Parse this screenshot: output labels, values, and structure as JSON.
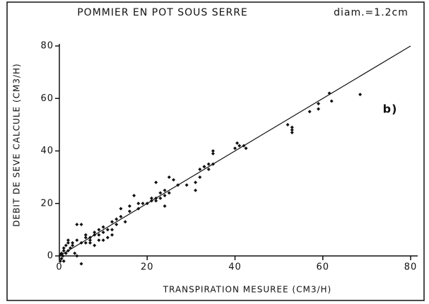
{
  "chart_data": {
    "type": "scatter",
    "title": "POMMIER EN POT SOUS SERRE",
    "subtitle": "diam.=1.2cm",
    "xlabel": "TRANSPIRATION MESUREE   (CM3/H)",
    "ylabel": "DEBIT DE SEVE CALCULE   (CM3/H)",
    "annotation": "b)",
    "color": "#111111",
    "x": [
      61.5,
      68.5,
      62,
      59,
      59,
      57,
      52,
      53,
      53,
      53,
      40.5,
      41,
      42,
      42.5,
      40,
      35,
      35,
      34,
      35,
      33,
      32,
      32,
      31,
      31,
      27,
      26,
      25,
      24,
      23,
      24,
      23,
      22,
      22,
      21,
      20,
      19,
      24,
      18,
      17,
      16,
      16,
      14,
      13,
      13,
      12,
      12,
      11,
      10,
      10,
      9,
      9,
      8,
      8,
      7,
      7,
      6,
      6,
      9,
      10,
      8,
      5,
      5,
      4,
      4,
      3,
      2,
      2,
      1.5,
      1,
      1,
      0.5,
      0.5,
      0.3,
      0.8,
      1,
      1.5,
      2,
      2.5,
      3,
      0.2,
      5,
      3.5,
      4,
      6,
      7,
      11,
      12,
      14,
      15,
      18,
      21,
      29,
      33,
      34,
      22,
      25
    ],
    "y": [
      62,
      61.5,
      59,
      58,
      56,
      55,
      50,
      49,
      48,
      47,
      43,
      42,
      42,
      41,
      41,
      40,
      39,
      35,
      35,
      34,
      33,
      30,
      25,
      28,
      27,
      29,
      24,
      25,
      24,
      23,
      22,
      22,
      21,
      21,
      20,
      20,
      19,
      18,
      23,
      19,
      17,
      18,
      14,
      12,
      13,
      10,
      10,
      9,
      11,
      10,
      8,
      8,
      9,
      7,
      6,
      7,
      8,
      6,
      6,
      4,
      5,
      12,
      12,
      6,
      5,
      6,
      5,
      4,
      3,
      2,
      1,
      -1,
      0.5,
      0,
      -2,
      1,
      2,
      3,
      4,
      -2,
      -3,
      1,
      0,
      5,
      5,
      7,
      8,
      15,
      13,
      20,
      22,
      27,
      34,
      33,
      28,
      30
    ],
    "line": {
      "x": [
        0,
        80
      ],
      "y": [
        0,
        80
      ]
    },
    "xlim": [
      0,
      80
    ],
    "ylim": [
      0,
      80
    ],
    "xticks": [
      0,
      20,
      40,
      60,
      80
    ],
    "yticks": [
      0,
      20,
      40,
      60,
      80
    ]
  }
}
